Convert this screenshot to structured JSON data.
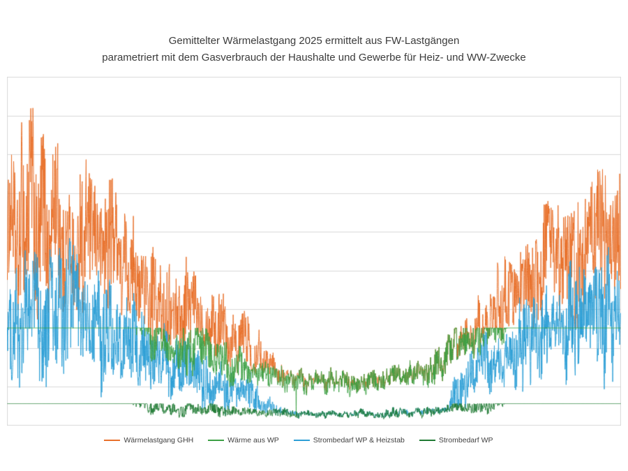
{
  "title": {
    "line1": "Gemittelter Wärmelastgang 2025 ermittelt aus FW-Lastgängen",
    "line2": "parametriert mit dem Gasverbrauch der Haushalte und Gewerbe für Heiz- und WW-Zwecke"
  },
  "colors": {
    "background": "#ffffff",
    "grid": "#d9d9d9",
    "text": "#3b3b3b",
    "orange": "#e8702a",
    "blue": "#2d9fd6",
    "green": "#3ca044",
    "dark_green": "#1f7a33"
  },
  "legend": {
    "items": [
      {
        "label": "Wärmelastgang GHH",
        "color": "#e8702a"
      },
      {
        "label": "Wärme aus WP",
        "color": "#3ca044"
      },
      {
        "label": "Strombedarf WP & Heizstab",
        "color": "#2d9fd6"
      },
      {
        "label": "Strombedarf WP",
        "color": "#1f7a33"
      }
    ]
  },
  "chart_data": {
    "type": "line",
    "title": "Gemittelter Wärmelastgang 2025 ermittelt aus FW-Lastgängen parametriert mit dem Gasverbrauch der Haushalte und Gewerbe für Heiz- und WW-Zwecke",
    "x_axis": {
      "label": "",
      "tick_labels": [],
      "points": 8760,
      "description": "hourly values over one year, no visible tick labels"
    },
    "y_axis": {
      "label": "",
      "tick_labels": [],
      "gridline_rows": 9,
      "description": "no visible scale; series values expressed as percent of plot height (0 = bottom axis, 100 = top border)"
    },
    "grid": true,
    "legend_position": "bottom",
    "series": [
      {
        "name": "Wärmelastgang GHH",
        "color": "#e8702a",
        "cap_pct": null,
        "floor_series": "Wärme aus WP",
        "description": "total heat load: wide noisy band, high in winter (peaks ~95%), near the WP band in summer",
        "envelope_tca": [
          [
            0.0,
            55,
            27
          ],
          [
            0.04,
            57,
            29
          ],
          [
            0.09,
            55,
            27
          ],
          [
            0.13,
            53,
            27
          ],
          [
            0.17,
            48,
            23
          ],
          [
            0.21,
            42,
            19
          ],
          [
            0.25,
            36,
            16
          ],
          [
            0.29,
            33,
            14
          ],
          [
            0.33,
            30,
            13
          ],
          [
            0.37,
            25,
            10
          ],
          [
            0.41,
            19,
            7
          ],
          [
            0.45,
            13,
            3.5
          ],
          [
            0.5,
            11,
            2.5
          ],
          [
            0.58,
            11,
            2.5
          ],
          [
            0.64,
            12,
            3
          ],
          [
            0.68,
            13.5,
            4
          ],
          [
            0.72,
            13,
            4
          ],
          [
            0.735,
            20,
            8
          ],
          [
            0.76,
            27,
            11
          ],
          [
            0.79,
            33,
            13
          ],
          [
            0.84,
            39,
            16
          ],
          [
            0.87,
            44,
            19
          ],
          [
            0.91,
            49,
            22
          ],
          [
            0.95,
            52,
            24
          ],
          [
            1.0,
            53,
            25
          ]
        ]
      },
      {
        "name": "Strombedarf WP & Heizstab",
        "color": "#2d9fd6",
        "cap_pct": null,
        "floor_series": "Strombedarf WP",
        "description": "electricity demand WP + heating rod: noisy band below the heat load, hidden behind Strombedarf WP in summer",
        "envelope_tca": [
          [
            0.0,
            31,
            20
          ],
          [
            0.04,
            33,
            21
          ],
          [
            0.09,
            31,
            20
          ],
          [
            0.13,
            29,
            19
          ],
          [
            0.17,
            26,
            17
          ],
          [
            0.21,
            22,
            15
          ],
          [
            0.25,
            18,
            13
          ],
          [
            0.29,
            15,
            11
          ],
          [
            0.33,
            13,
            10
          ],
          [
            0.37,
            10,
            8
          ],
          [
            0.41,
            7,
            5
          ],
          [
            0.45,
            3.5,
            2
          ],
          [
            0.5,
            2.2,
            1.2
          ],
          [
            0.58,
            2.2,
            1.2
          ],
          [
            0.64,
            2.8,
            1.5
          ],
          [
            0.68,
            3.2,
            1.8
          ],
          [
            0.72,
            4,
            2.5
          ],
          [
            0.735,
            11,
            8
          ],
          [
            0.76,
            14,
            9
          ],
          [
            0.79,
            17,
            11
          ],
          [
            0.84,
            21,
            13
          ],
          [
            0.87,
            24,
            15
          ],
          [
            0.91,
            27,
            17
          ],
          [
            0.95,
            29,
            18
          ],
          [
            1.0,
            30,
            19
          ]
        ]
      },
      {
        "name": "Wärme aus WP",
        "color": "#3ca044",
        "cap_pct": 28,
        "floor_series": null,
        "description": "heat from heat pump: flat at cap (~28% of plot height, y≈470px) Jan–mid Mar and mid Oct–Dec; noisy band 10–28% in between, lowest in summer",
        "envelope_tca": [
          [
            0.0,
            40,
            6
          ],
          [
            0.18,
            40,
            6
          ],
          [
            0.205,
            33,
            7
          ],
          [
            0.23,
            27,
            8
          ],
          [
            0.27,
            24,
            8.5
          ],
          [
            0.31,
            22,
            7.5
          ],
          [
            0.35,
            19,
            6.5
          ],
          [
            0.39,
            16,
            5
          ],
          [
            0.43,
            14,
            4.5
          ],
          [
            0.48,
            13,
            4
          ],
          [
            0.54,
            12.5,
            3.8
          ],
          [
            0.6,
            13,
            3.8
          ],
          [
            0.64,
            14,
            4.2
          ],
          [
            0.68,
            16,
            5
          ],
          [
            0.71,
            17.5,
            5.5
          ],
          [
            0.73,
            22,
            7.5
          ],
          [
            0.76,
            25,
            8
          ],
          [
            0.79,
            27,
            8
          ],
          [
            0.815,
            33,
            7
          ],
          [
            0.84,
            40,
            6
          ],
          [
            1.0,
            40,
            6
          ]
        ]
      },
      {
        "name": "Strombedarf WP",
        "color": "#1f7a33",
        "cap_pct": 6.3,
        "floor_series": null,
        "description": "electricity demand of heat pump only: flat at cap (~6.3%, y≈579px) in deep winter, thin noisy band 2–6% rest of year",
        "envelope_tca": [
          [
            0.0,
            10,
            2
          ],
          [
            0.18,
            10,
            2
          ],
          [
            0.205,
            7.5,
            2.2
          ],
          [
            0.23,
            5.4,
            2.4
          ],
          [
            0.27,
            5,
            2.3
          ],
          [
            0.31,
            4.7,
            2.1
          ],
          [
            0.35,
            4.4,
            1.9
          ],
          [
            0.39,
            4,
            1.7
          ],
          [
            0.43,
            3.6,
            1.5
          ],
          [
            0.48,
            3.3,
            1.4
          ],
          [
            0.54,
            3.2,
            1.3
          ],
          [
            0.6,
            3.3,
            1.3
          ],
          [
            0.64,
            3.6,
            1.5
          ],
          [
            0.68,
            3.9,
            1.6
          ],
          [
            0.71,
            4.2,
            1.8
          ],
          [
            0.73,
            5,
            2.2
          ],
          [
            0.76,
            5.4,
            2.3
          ],
          [
            0.79,
            6,
            2.3
          ],
          [
            0.815,
            8,
            2.2
          ],
          [
            0.84,
            10,
            2
          ],
          [
            1.0,
            10,
            2
          ]
        ]
      }
    ],
    "observed_anomalies": [
      {
        "series": "Wärme aus WP",
        "t": 0.471,
        "v_pct": 2.5
      }
    ]
  }
}
